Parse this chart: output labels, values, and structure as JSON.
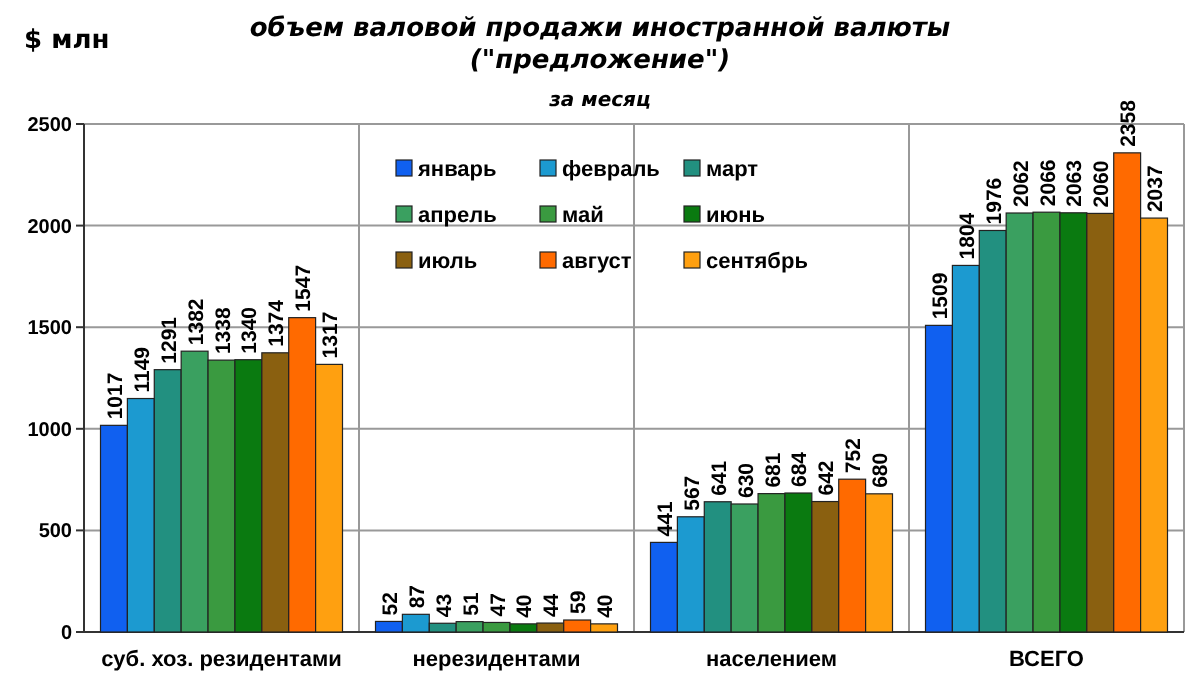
{
  "chart_data": {
    "type": "bar",
    "title": "объем валовой продажи иностранной валюты (\"предложение\")",
    "subtitle": "за месяц",
    "ylabel": "$ млн",
    "categories": [
      "суб. хоз. резидентами",
      "нерезидентами",
      "населением",
      "ВСЕГО"
    ],
    "series": [
      {
        "name": "январь",
        "color": "#1060f0",
        "values": [
          1017,
          52,
          441,
          1509
        ]
      },
      {
        "name": "февраль",
        "color": "#1c9ad0",
        "values": [
          1149,
          87,
          567,
          1804
        ]
      },
      {
        "name": "март",
        "color": "#229080",
        "values": [
          1291,
          43,
          641,
          1976
        ]
      },
      {
        "name": "апрель",
        "color": "#3aa060",
        "values": [
          1382,
          51,
          630,
          2062
        ]
      },
      {
        "name": "май",
        "color": "#3a9a40",
        "values": [
          1338,
          47,
          681,
          2066
        ]
      },
      {
        "name": "июнь",
        "color": "#0a7a10",
        "values": [
          1340,
          40,
          684,
          2063
        ]
      },
      {
        "name": "июль",
        "color": "#8a6010",
        "values": [
          1374,
          44,
          642,
          2060
        ]
      },
      {
        "name": "август",
        "color": "#ff6a00",
        "values": [
          1547,
          59,
          752,
          2358
        ]
      },
      {
        "name": "сентябрь",
        "color": "#ffa010",
        "values": [
          1317,
          40,
          680,
          2037
        ]
      }
    ],
    "ylim": [
      0,
      2500
    ],
    "yticks": [
      0,
      500,
      1000,
      1500,
      2000,
      2500
    ],
    "grid": true,
    "legend": "top",
    "data_labels": true
  }
}
